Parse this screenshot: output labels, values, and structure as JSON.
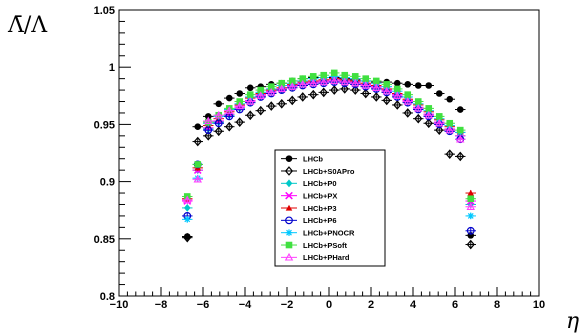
{
  "chart_data": {
    "type": "scatter",
    "title": "",
    "xlabel": "η",
    "ylabel": "Λ̄/Λ",
    "xlim": [
      -10,
      10
    ],
    "ylim": [
      0.8,
      1.05
    ],
    "x_ticks": [
      "−10",
      "−8",
      "−6",
      "−4",
      "−2",
      "0",
      "2",
      "4",
      "6",
      "8",
      "10"
    ],
    "y_ticks": [
      "0.8",
      "0.85",
      "0.9",
      "0.95",
      "1",
      "1.05"
    ],
    "x_tick_values": [
      -10,
      -8,
      -6,
      -4,
      -2,
      0,
      2,
      4,
      6,
      8,
      10
    ],
    "y_tick_values": [
      0.8,
      0.85,
      0.9,
      0.95,
      1.0,
      1.05
    ],
    "grid": false,
    "legend_position": "center",
    "x": [
      -6.75,
      -6.25,
      -5.75,
      -5.25,
      -4.75,
      -4.25,
      -3.75,
      -3.25,
      -2.75,
      -2.25,
      -1.75,
      -1.25,
      -0.75,
      -0.25,
      0.25,
      0.75,
      1.25,
      1.75,
      2.25,
      2.75,
      3.25,
      3.75,
      4.25,
      4.75,
      5.25,
      5.75,
      6.25,
      6.75
    ],
    "series": [
      {
        "name": "LHCb",
        "color": "#000000",
        "marker": "circle-filled",
        "values": [
          0.852,
          0.948,
          0.957,
          0.968,
          0.973,
          0.977,
          0.982,
          0.983,
          0.985,
          0.986,
          0.988,
          0.99,
          0.991,
          0.991,
          0.991,
          0.99,
          0.989,
          0.988,
          0.987,
          0.987,
          0.986,
          0.985,
          0.984,
          0.984,
          0.977,
          0.972,
          0.963,
          0.853
        ]
      },
      {
        "name": "LHCb+S0APro",
        "color": "#000000",
        "marker": "diamond-open",
        "values": [
          0.851,
          0.935,
          0.94,
          0.944,
          0.948,
          0.952,
          0.958,
          0.962,
          0.966,
          0.968,
          0.971,
          0.974,
          0.976,
          0.978,
          0.98,
          0.981,
          0.98,
          0.977,
          0.974,
          0.971,
          0.967,
          0.96,
          0.955,
          0.951,
          0.945,
          0.924,
          0.922,
          0.845
        ]
      },
      {
        "name": "LHCb+P0",
        "color": "#00c8c8",
        "marker": "diamond-filled",
        "values": [
          0.877,
          0.91,
          0.946,
          0.952,
          0.958,
          0.964,
          0.97,
          0.975,
          0.978,
          0.98,
          0.983,
          0.985,
          0.986,
          0.987,
          0.988,
          0.987,
          0.986,
          0.984,
          0.982,
          0.979,
          0.975,
          0.97,
          0.964,
          0.958,
          0.951,
          0.945,
          0.94,
          0.88
        ]
      },
      {
        "name": "LHCb+PX",
        "color": "#ff00ff",
        "marker": "cross",
        "values": [
          0.883,
          0.91,
          0.947,
          0.953,
          0.959,
          0.965,
          0.971,
          0.976,
          0.979,
          0.981,
          0.984,
          0.986,
          0.987,
          0.988,
          0.989,
          0.988,
          0.987,
          0.985,
          0.983,
          0.98,
          0.976,
          0.971,
          0.965,
          0.959,
          0.952,
          0.946,
          0.94,
          0.883
        ]
      },
      {
        "name": "LHCb+P3",
        "color": "#e00000",
        "marker": "triangle-filled",
        "values": [
          0.885,
          0.912,
          0.949,
          0.955,
          0.961,
          0.967,
          0.973,
          0.977,
          0.98,
          0.982,
          0.985,
          0.987,
          0.988,
          0.989,
          0.99,
          0.989,
          0.988,
          0.986,
          0.984,
          0.981,
          0.977,
          0.972,
          0.967,
          0.961,
          0.954,
          0.948,
          0.943,
          0.89
        ]
      },
      {
        "name": "LHCb+P6",
        "color": "#0000cc",
        "marker": "circle-open",
        "values": [
          0.87,
          0.915,
          0.945,
          0.951,
          0.957,
          0.963,
          0.969,
          0.974,
          0.977,
          0.98,
          0.982,
          0.984,
          0.985,
          0.986,
          0.987,
          0.986,
          0.985,
          0.983,
          0.981,
          0.978,
          0.974,
          0.969,
          0.963,
          0.957,
          0.95,
          0.944,
          0.937,
          0.857
        ]
      },
      {
        "name": "LHCb+PNOCR",
        "color": "#00c8ff",
        "marker": "star",
        "values": [
          0.867,
          0.903,
          0.951,
          0.957,
          0.963,
          0.968,
          0.974,
          0.978,
          0.981,
          0.984,
          0.986,
          0.988,
          0.99,
          0.991,
          0.992,
          0.991,
          0.99,
          0.988,
          0.986,
          0.983,
          0.979,
          0.974,
          0.968,
          0.962,
          0.955,
          0.949,
          0.943,
          0.87
        ]
      },
      {
        "name": "LHCb+PSoft",
        "color": "#40e040",
        "marker": "square-filled",
        "values": [
          0.887,
          0.915,
          0.952,
          0.958,
          0.964,
          0.97,
          0.976,
          0.98,
          0.983,
          0.986,
          0.988,
          0.99,
          0.992,
          0.993,
          0.995,
          0.993,
          0.992,
          0.99,
          0.988,
          0.985,
          0.981,
          0.976,
          0.97,
          0.964,
          0.957,
          0.951,
          0.945,
          0.885
        ]
      },
      {
        "name": "LHCb+PHard",
        "color": "#ff40ff",
        "marker": "triangle-open",
        "values": [
          0.884,
          0.902,
          0.953,
          0.958,
          0.962,
          0.966,
          0.97,
          0.975,
          0.978,
          0.981,
          0.983,
          0.985,
          0.986,
          0.987,
          0.988,
          0.987,
          0.986,
          0.984,
          0.982,
          0.979,
          0.975,
          0.97,
          0.964,
          0.958,
          0.951,
          0.945,
          0.937,
          0.878
        ]
      }
    ]
  }
}
